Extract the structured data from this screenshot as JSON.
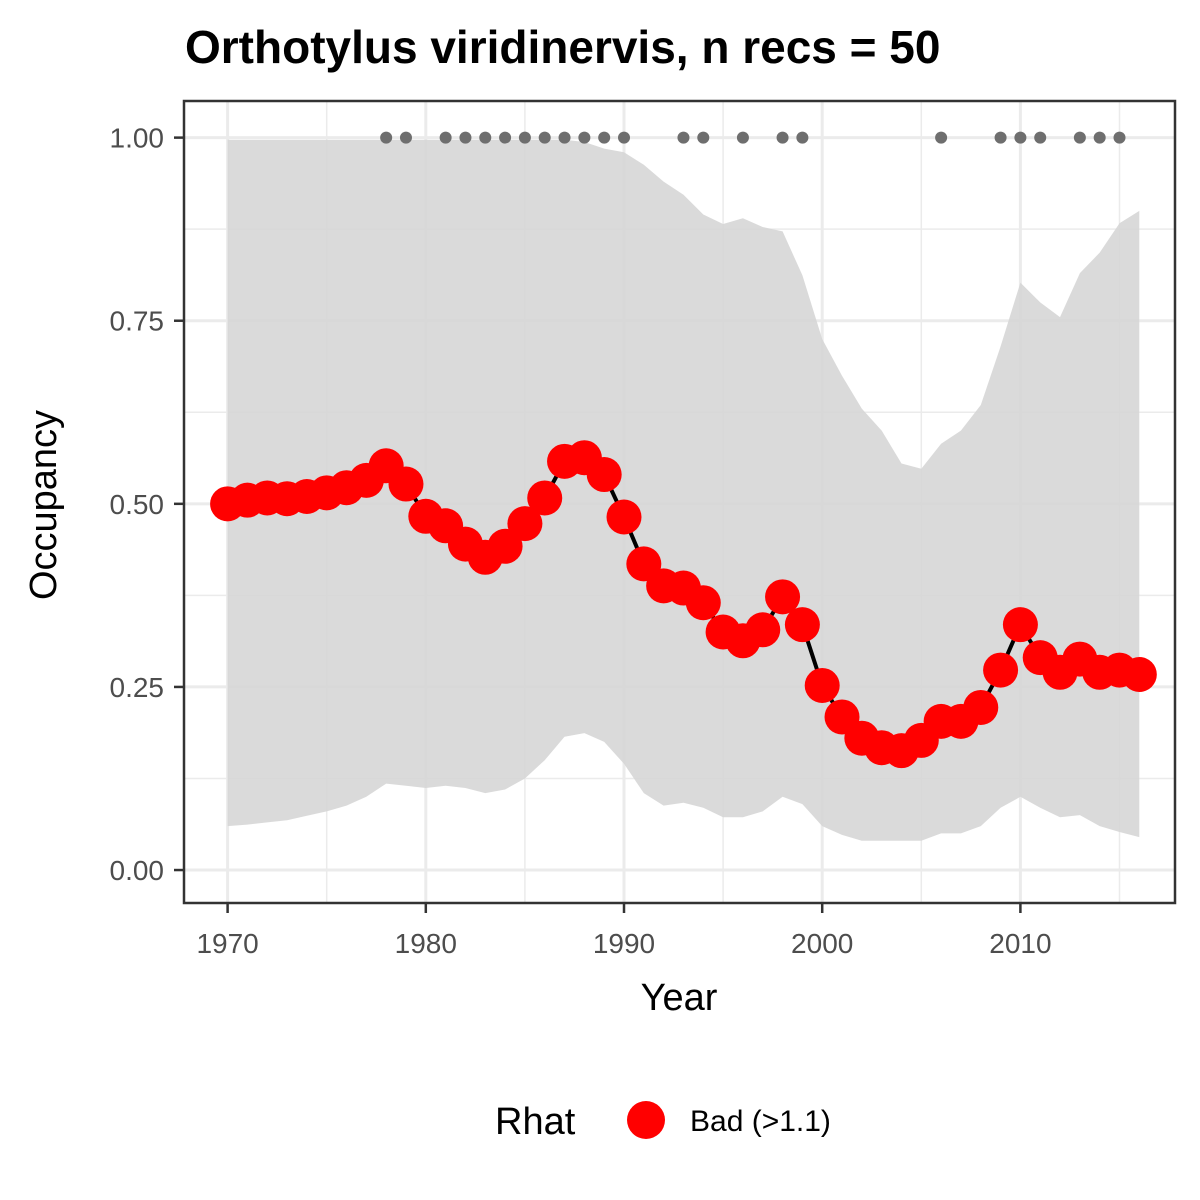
{
  "chart_data": {
    "type": "line",
    "title": "Orthotylus viridinervis, n recs = 50",
    "xlabel": "Year",
    "ylabel": "Occupancy",
    "xlim": [
      1967.8,
      2017.8
    ],
    "ylim": [
      -0.045,
      1.05
    ],
    "x_ticks": [
      1970,
      1980,
      1990,
      2000,
      2010
    ],
    "x_tick_labels": [
      "1970",
      "1980",
      "1990",
      "2000",
      "2010"
    ],
    "y_ticks": [
      0,
      0.25,
      0.5,
      0.75,
      1.0
    ],
    "y_tick_labels": [
      "0.00",
      "0.25",
      "0.50",
      "0.75",
      "1.00"
    ],
    "grid": true,
    "legend": {
      "title": "Rhat",
      "position": "bottom",
      "entries": [
        {
          "label": "Bad (>1.1)",
          "color": "#ff0000"
        }
      ]
    },
    "colors": {
      "points": "#ff0000",
      "line": "#000000",
      "ribbon": "#d6d6d6",
      "records": "#6e6e6e"
    },
    "years": [
      1970,
      1971,
      1972,
      1973,
      1974,
      1975,
      1976,
      1977,
      1978,
      1979,
      1980,
      1981,
      1982,
      1983,
      1984,
      1985,
      1986,
      1987,
      1988,
      1989,
      1990,
      1991,
      1992,
      1993,
      1994,
      1995,
      1996,
      1997,
      1998,
      1999,
      2000,
      2001,
      2002,
      2003,
      2004,
      2005,
      2006,
      2007,
      2008,
      2009,
      2010,
      2011,
      2012,
      2013,
      2014,
      2015,
      2016
    ],
    "occupancy": [
      0.5,
      0.505,
      0.508,
      0.507,
      0.51,
      0.515,
      0.522,
      0.532,
      0.552,
      0.527,
      0.483,
      0.47,
      0.445,
      0.427,
      0.442,
      0.473,
      0.508,
      0.558,
      0.563,
      0.54,
      0.482,
      0.418,
      0.388,
      0.385,
      0.365,
      0.325,
      0.313,
      0.328,
      0.373,
      0.335,
      0.252,
      0.209,
      0.18,
      0.167,
      0.163,
      0.177,
      0.203,
      0.203,
      0.222,
      0.273,
      0.335,
      0.29,
      0.27,
      0.288,
      0.27,
      0.273,
      0.267
    ],
    "upper": [
      0.997,
      0.997,
      0.997,
      0.997,
      0.997,
      0.997,
      0.997,
      0.997,
      0.997,
      0.997,
      0.997,
      0.997,
      0.997,
      0.997,
      0.997,
      0.997,
      0.997,
      0.997,
      0.994,
      0.985,
      0.98,
      0.963,
      0.94,
      0.922,
      0.895,
      0.882,
      0.89,
      0.878,
      0.872,
      0.812,
      0.725,
      0.675,
      0.63,
      0.6,
      0.555,
      0.548,
      0.582,
      0.6,
      0.635,
      0.715,
      0.802,
      0.775,
      0.755,
      0.815,
      0.843,
      0.883,
      0.9
    ],
    "lower": [
      0.06,
      0.062,
      0.065,
      0.068,
      0.074,
      0.08,
      0.088,
      0.1,
      0.118,
      0.115,
      0.112,
      0.115,
      0.112,
      0.105,
      0.11,
      0.125,
      0.15,
      0.182,
      0.187,
      0.175,
      0.145,
      0.105,
      0.088,
      0.092,
      0.085,
      0.072,
      0.072,
      0.08,
      0.1,
      0.09,
      0.06,
      0.048,
      0.04,
      0.04,
      0.04,
      0.04,
      0.05,
      0.05,
      0.06,
      0.085,
      0.1,
      0.085,
      0.072,
      0.075,
      0.06,
      0.052,
      0.045
    ],
    "record_years": [
      1978,
      1979,
      1981,
      1982,
      1983,
      1984,
      1985,
      1986,
      1987,
      1988,
      1989,
      1990,
      1993,
      1994,
      1996,
      1998,
      1999,
      2006,
      2009,
      2010,
      2011,
      2013,
      2014,
      2015
    ],
    "record_value": 1.0
  }
}
